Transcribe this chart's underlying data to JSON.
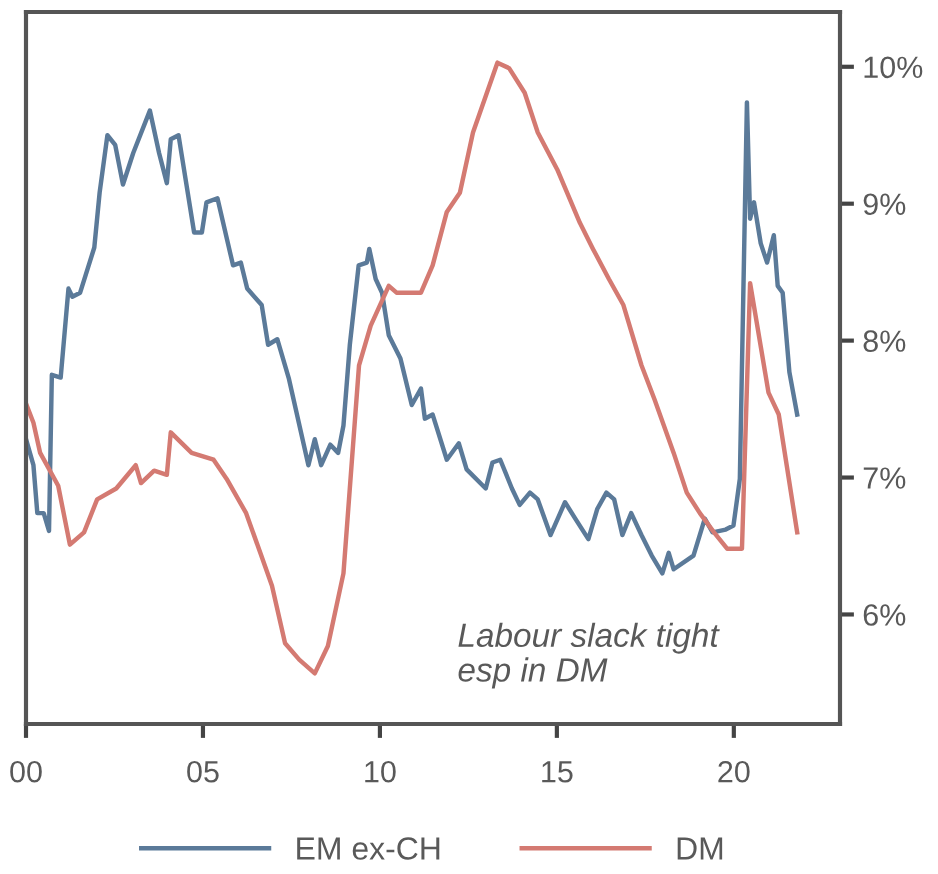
{
  "chart_data": {
    "type": "line",
    "xlim": [
      0,
      23
    ],
    "xticks": [
      {
        "value": 0,
        "label": "00"
      },
      {
        "value": 5,
        "label": "05"
      },
      {
        "value": 10,
        "label": "10"
      },
      {
        "value": 15,
        "label": "15"
      },
      {
        "value": 20,
        "label": "20"
      }
    ],
    "ylim": [
      5.2,
      10.4
    ],
    "yticks": [
      {
        "value": 6,
        "label": "6%"
      },
      {
        "value": 7,
        "label": "7%"
      },
      {
        "value": 8,
        "label": "8%"
      },
      {
        "value": 9,
        "label": "9%"
      },
      {
        "value": 10,
        "label": "10%"
      }
    ],
    "grid": false,
    "legend": "bottom",
    "marker": "none",
    "line_style": "solid",
    "annotations": [
      "Labour slack tight\nesp in DM"
    ],
    "series": [
      {
        "name": "EM ex-CH",
        "color": "#5b7a99",
        "x": [
          0,
          0.21,
          0.32,
          0.5,
          0.65,
          0.73,
          0.98,
          1.2,
          1.31,
          1.53,
          1.93,
          2.08,
          2.3,
          2.52,
          2.74,
          3.03,
          3.5,
          3.76,
          3.98,
          4.09,
          4.31,
          4.75,
          4.97,
          5.1,
          5.41,
          5.85,
          6.07,
          6.25,
          6.66,
          6.84,
          7.1,
          7.43,
          7.98,
          8.16,
          8.34,
          8.6,
          8.82,
          8.97,
          9.15,
          9.4,
          9.63,
          9.7,
          9.88,
          10.06,
          10.25,
          10.58,
          10.9,
          11.16,
          11.27,
          11.49,
          11.89,
          12.23,
          12.45,
          12.99,
          13.18,
          13.4,
          13.73,
          13.95,
          14.24,
          14.46,
          14.82,
          15.23,
          15.52,
          15.89,
          16.14,
          16.4,
          16.62,
          16.85,
          17.1,
          17.39,
          17.68,
          17.98,
          18.16,
          18.3,
          18.86,
          19.18,
          19.4,
          19.77,
          19.99,
          20.17,
          20.37,
          20.46,
          20.57,
          20.76,
          20.94,
          21.13,
          21.24,
          21.38,
          21.57,
          21.79
        ],
        "values": [
          7.28,
          7.09,
          6.74,
          6.74,
          6.61,
          7.75,
          7.73,
          8.38,
          8.32,
          8.35,
          8.68,
          9.08,
          9.5,
          9.43,
          9.14,
          9.37,
          9.68,
          9.37,
          9.15,
          9.47,
          9.5,
          8.79,
          8.79,
          9.01,
          9.04,
          8.55,
          8.57,
          8.38,
          8.26,
          7.97,
          8.01,
          7.72,
          7.09,
          7.28,
          7.09,
          7.24,
          7.18,
          7.38,
          7.97,
          8.55,
          8.57,
          8.67,
          8.45,
          8.35,
          8.04,
          7.87,
          7.53,
          7.65,
          7.43,
          7.46,
          7.13,
          7.25,
          7.06,
          6.92,
          7.11,
          7.13,
          6.92,
          6.8,
          6.89,
          6.84,
          6.58,
          6.82,
          6.7,
          6.55,
          6.77,
          6.89,
          6.84,
          6.58,
          6.74,
          6.58,
          6.43,
          6.3,
          6.45,
          6.33,
          6.43,
          6.7,
          6.6,
          6.62,
          6.65,
          6.99,
          9.74,
          8.89,
          9.01,
          8.71,
          8.57,
          8.77,
          8.4,
          8.35,
          7.77,
          7.46
        ]
      },
      {
        "name": "DM",
        "color": "#d47a72",
        "x": [
          0,
          0.21,
          0.4,
          0.91,
          1.24,
          1.64,
          2.01,
          2.55,
          3.1,
          3.25,
          3.62,
          3.98,
          4.09,
          4.68,
          5.3,
          5.67,
          6.22,
          6.62,
          6.95,
          7.32,
          7.72,
          8.16,
          8.53,
          8.97,
          9.41,
          9.74,
          10.25,
          10.47,
          11.16,
          11.49,
          11.89,
          12.26,
          12.63,
          13.32,
          13.65,
          14.09,
          14.46,
          15.01,
          15.65,
          16.02,
          16.47,
          16.88,
          17.39,
          17.76,
          18.3,
          18.67,
          19.04,
          19.44,
          19.81,
          20.23,
          20.46,
          20.98,
          21.27,
          21.79
        ],
        "values": [
          7.54,
          7.4,
          7.18,
          6.94,
          6.51,
          6.6,
          6.84,
          6.92,
          7.09,
          6.96,
          7.05,
          7.02,
          7.33,
          7.18,
          7.13,
          6.99,
          6.74,
          6.45,
          6.21,
          5.79,
          5.67,
          5.57,
          5.77,
          6.3,
          7.82,
          8.11,
          8.4,
          8.35,
          8.35,
          8.55,
          8.94,
          9.08,
          9.52,
          10.03,
          9.99,
          9.81,
          9.52,
          9.25,
          8.86,
          8.67,
          8.45,
          8.26,
          7.82,
          7.57,
          7.18,
          6.89,
          6.74,
          6.6,
          6.48,
          6.48,
          8.42,
          7.62,
          7.46,
          6.6
        ]
      }
    ]
  }
}
